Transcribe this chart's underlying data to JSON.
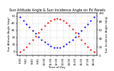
{
  "title": "Sun Altitude Angle & Sun Incidence Angle on PV Panels",
  "xlabel": "Time of Day",
  "ylabel_left": "Sun Altitude Angle (deg)",
  "ylabel_right": "Sun Incidence Angle (deg)",
  "time_hours": [
    6,
    6.5,
    7,
    7.5,
    8,
    8.5,
    9,
    9.5,
    10,
    10.5,
    11,
    11.5,
    12,
    12.5,
    13,
    13.5,
    14,
    14.5,
    15,
    15.5,
    16,
    16.5,
    17,
    17.5,
    18
  ],
  "altitude_angle": [
    0,
    3,
    7,
    12,
    17,
    22,
    27,
    32,
    37,
    41,
    44,
    46,
    47,
    46,
    44,
    41,
    37,
    32,
    27,
    22,
    17,
    12,
    7,
    3,
    0
  ],
  "incidence_angle": [
    90,
    82,
    74,
    66,
    58,
    51,
    44,
    37,
    31,
    26,
    22,
    19,
    18,
    19,
    22,
    26,
    31,
    37,
    44,
    51,
    58,
    66,
    74,
    82,
    90
  ],
  "altitude_color": "#ff0000",
  "incidence_color": "#0000ff",
  "bg_color": "#ffffff",
  "grid_color": "#aaaaaa",
  "ylim_left": [
    -5,
    55
  ],
  "ylim_right": [
    0,
    100
  ],
  "xlim": [
    5.5,
    18.5
  ],
  "title_fontsize": 3.5,
  "tick_fontsize": 2.8,
  "label_fontsize": 2.8,
  "dot_size": 1.2,
  "xticks": [
    6,
    7,
    8,
    9,
    10,
    11,
    12,
    13,
    14,
    15,
    16,
    17,
    18
  ],
  "yticks_left": [
    0,
    10,
    20,
    30,
    40,
    50
  ],
  "yticks_right": [
    0,
    20,
    40,
    60,
    80,
    100
  ]
}
